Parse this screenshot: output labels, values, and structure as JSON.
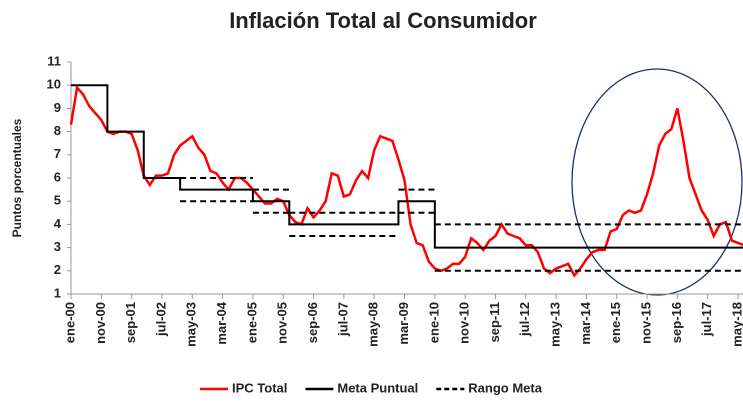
{
  "chart_data": {
    "type": "line",
    "title": "Inflación Total al Consumidor",
    "y_label": "Puntos porcentuales",
    "categories": [
      "ene-00",
      null,
      null,
      null,
      null,
      "nov-00",
      null,
      null,
      null,
      null,
      "sep-01",
      null,
      null,
      null,
      null,
      "jul-02",
      null,
      null,
      null,
      null,
      "may-03",
      null,
      null,
      null,
      null,
      "mar-04",
      null,
      null,
      null,
      null,
      "ene-05",
      null,
      null,
      null,
      null,
      "nov-05",
      null,
      null,
      null,
      null,
      "sep-06",
      null,
      null,
      null,
      null,
      "jul-07",
      null,
      null,
      null,
      null,
      "may-08",
      null,
      null,
      null,
      null,
      "mar-09",
      null,
      null,
      null,
      null,
      "ene-10",
      null,
      null,
      null,
      null,
      "nov-10",
      null,
      null,
      null,
      null,
      "sep-11",
      null,
      null,
      null,
      null,
      "jul-12",
      null,
      null,
      null,
      null,
      "may-13",
      null,
      null,
      null,
      null,
      "mar-14",
      null,
      null,
      null,
      null,
      "ene-15",
      null,
      null,
      null,
      null,
      "nov-15",
      null,
      null,
      null,
      null,
      "sep-16",
      null,
      null,
      null,
      null,
      "jul-17",
      null,
      null,
      null,
      null,
      "may-18",
      null
    ],
    "series": [
      {
        "name": "IPC Total",
        "color": "#ff0000",
        "style": "solid",
        "values": [
          8.3,
          9.9,
          9.6,
          9.1,
          8.8,
          8.5,
          8.0,
          7.9,
          8.0,
          8.0,
          7.9,
          7.2,
          6.1,
          5.7,
          6.1,
          6.1,
          6.2,
          7.0,
          7.4,
          7.6,
          7.8,
          7.3,
          7.0,
          6.3,
          6.2,
          5.8,
          5.5,
          6.0,
          6.0,
          5.8,
          5.5,
          5.2,
          4.9,
          4.9,
          5.1,
          5.0,
          4.4,
          4.1,
          4.0,
          4.7,
          4.3,
          4.6,
          5.0,
          6.2,
          6.1,
          5.2,
          5.3,
          5.9,
          6.3,
          6.0,
          7.2,
          7.8,
          7.7,
          7.6,
          6.8,
          5.9,
          4.0,
          3.2,
          3.1,
          2.4,
          2.1,
          2.0,
          2.1,
          2.3,
          2.3,
          2.6,
          3.4,
          3.2,
          2.9,
          3.3,
          3.5,
          4.0,
          3.6,
          3.5,
          3.4,
          3.1,
          3.1,
          2.8,
          2.1,
          1.9,
          2.1,
          2.2,
          2.3,
          1.8,
          2.1,
          2.5,
          2.8,
          2.9,
          2.9,
          3.7,
          3.8,
          4.4,
          4.6,
          4.5,
          4.6,
          5.3,
          6.2,
          7.4,
          7.9,
          8.1,
          9.0,
          7.6,
          6.0,
          5.3,
          4.6,
          4.2,
          3.5,
          4.0,
          4.1,
          3.3,
          3.2,
          3.1
        ]
      },
      {
        "name": "Meta Puntual",
        "color": "#000000",
        "style": "step",
        "values": [
          10,
          10,
          10,
          10,
          10,
          10,
          8,
          8,
          8,
          8,
          8,
          8,
          6,
          6,
          6,
          6,
          6,
          6,
          5.5,
          5.5,
          5.5,
          5.5,
          5.5,
          5.5,
          5.5,
          5.5,
          5.5,
          5.5,
          5.5,
          5.5,
          5,
          5,
          5,
          5,
          5,
          5,
          4,
          4,
          4,
          4,
          4,
          4,
          4,
          4,
          4,
          4,
          4,
          4,
          4,
          4,
          4,
          4,
          4,
          4,
          5,
          5,
          5,
          5,
          5,
          5,
          3,
          3,
          3,
          3,
          3,
          3,
          3,
          3,
          3,
          3,
          3,
          3,
          3,
          3,
          3,
          3,
          3,
          3,
          3,
          3,
          3,
          3,
          3,
          3,
          3,
          3,
          3,
          3,
          3,
          3,
          3,
          3,
          3,
          3,
          3,
          3,
          3,
          3,
          3,
          3,
          3,
          3,
          3,
          3,
          3,
          3,
          3,
          3,
          3,
          3,
          3,
          3
        ]
      },
      {
        "name": "Rango Meta",
        "color": "#000000",
        "style": "dashed",
        "values": [
          null,
          null,
          null,
          null,
          null,
          null,
          null,
          null,
          null,
          null,
          null,
          null,
          null,
          null,
          null,
          null,
          null,
          null,
          6,
          6,
          6,
          6,
          6,
          6,
          6,
          6,
          6,
          6,
          6,
          6,
          5.5,
          5.5,
          5.5,
          5.5,
          5.5,
          5.5,
          4.5,
          4.5,
          4.5,
          4.5,
          4.5,
          4.5,
          4.5,
          4.5,
          4.5,
          4.5,
          4.5,
          4.5,
          4.5,
          4.5,
          4.5,
          4.5,
          4.5,
          4.5,
          5.5,
          5.5,
          5.5,
          5.5,
          5.5,
          5.5,
          4,
          4,
          4,
          4,
          4,
          4,
          4,
          4,
          4,
          4,
          4,
          4,
          4,
          4,
          4,
          4,
          4,
          4,
          4,
          4,
          4,
          4,
          4,
          4,
          4,
          4,
          4,
          4,
          4,
          4,
          4,
          4,
          4,
          4,
          4,
          4,
          4,
          4,
          4,
          4,
          4,
          4,
          4,
          4,
          4,
          4,
          4,
          4,
          4,
          4,
          4,
          4
        ],
        "lower": [
          null,
          null,
          null,
          null,
          null,
          null,
          null,
          null,
          null,
          null,
          null,
          null,
          null,
          null,
          null,
          null,
          null,
          null,
          5,
          5,
          5,
          5,
          5,
          5,
          5,
          5,
          5,
          5,
          5,
          5,
          4.5,
          4.5,
          4.5,
          4.5,
          4.5,
          4.5,
          3.5,
          3.5,
          3.5,
          3.5,
          3.5,
          3.5,
          3.5,
          3.5,
          3.5,
          3.5,
          3.5,
          3.5,
          3.5,
          3.5,
          3.5,
          3.5,
          3.5,
          3.5,
          4.5,
          4.5,
          4.5,
          4.5,
          4.5,
          4.5,
          2,
          2,
          2,
          2,
          2,
          2,
          2,
          2,
          2,
          2,
          2,
          2,
          2,
          2,
          2,
          2,
          2,
          2,
          2,
          2,
          2,
          2,
          2,
          2,
          2,
          2,
          2,
          2,
          2,
          2,
          2,
          2,
          2,
          2,
          2,
          2,
          2,
          2,
          2,
          2,
          2,
          2,
          2,
          2,
          2,
          2,
          2,
          2,
          2,
          2,
          2,
          2
        ]
      }
    ],
    "ylim": [
      1,
      11
    ],
    "yticks": [
      1,
      2,
      3,
      4,
      5,
      6,
      7,
      8,
      9,
      10,
      11
    ],
    "grid": false,
    "legend": "bottom"
  }
}
